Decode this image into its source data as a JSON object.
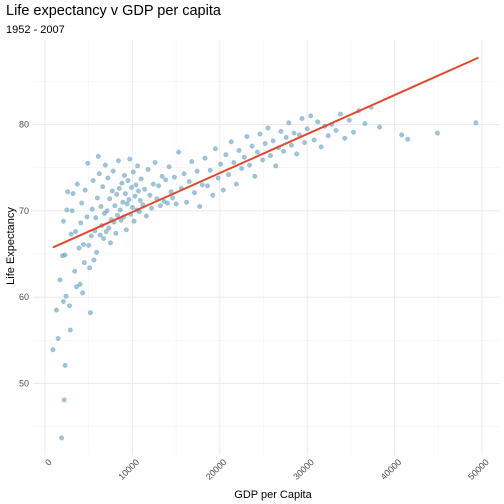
{
  "chart_data": {
    "type": "scatter",
    "title": "Life expectancy v GDP per capita",
    "subtitle": "1952 - 2007",
    "xlabel": "GDP per Capita",
    "ylabel": "Life Expectancy",
    "xlim": [
      0,
      50000
    ],
    "ylim": [
      42,
      90
    ],
    "x_ticks": [
      0,
      10000,
      20000,
      30000,
      40000,
      50000
    ],
    "x_tick_labels": [
      "0",
      "10000",
      "20000",
      "30000",
      "40000",
      "50000"
    ],
    "y_ticks": [
      50,
      60,
      70,
      80
    ],
    "y_tick_labels": [
      "50",
      "60",
      "70",
      "80"
    ],
    "grid": true,
    "point_color": "#5B9FC2",
    "line_color": "#E4472F",
    "trend_line": {
      "x": [
        1000,
        49500
      ],
      "y": [
        65.8,
        87.7
      ]
    },
    "points": [
      [
        900,
        53.9
      ],
      [
        1300,
        58.5
      ],
      [
        1500,
        55.2
      ],
      [
        1700,
        62.0
      ],
      [
        1900,
        43.7
      ],
      [
        2100,
        59.5
      ],
      [
        2200,
        48.1
      ],
      [
        2300,
        52.1
      ],
      [
        2400,
        60.1
      ],
      [
        2000,
        64.8
      ],
      [
        2100,
        68.8
      ],
      [
        2300,
        64.9
      ],
      [
        2500,
        70.1
      ],
      [
        2600,
        72.2
      ],
      [
        2800,
        59.0
      ],
      [
        2900,
        56.2
      ],
      [
        3000,
        67.3
      ],
      [
        3100,
        70.0
      ],
      [
        3200,
        72.0
      ],
      [
        3400,
        63.0
      ],
      [
        3500,
        67.6
      ],
      [
        3600,
        61.2
      ],
      [
        3700,
        73.1
      ],
      [
        3900,
        65.7
      ],
      [
        4000,
        61.5
      ],
      [
        4100,
        68.6
      ],
      [
        4200,
        70.9
      ],
      [
        4300,
        60.5
      ],
      [
        4400,
        66.1
      ],
      [
        4500,
        64.0
      ],
      [
        4600,
        72.4
      ],
      [
        4800,
        69.3
      ],
      [
        4900,
        75.5
      ],
      [
        5000,
        66.0
      ],
      [
        5100,
        63.4
      ],
      [
        5200,
        58.2
      ],
      [
        5300,
        67.1
      ],
      [
        5400,
        70.2
      ],
      [
        5500,
        73.5
      ],
      [
        5600,
        64.3
      ],
      [
        5700,
        67.7
      ],
      [
        5800,
        69.2
      ],
      [
        5900,
        65.2
      ],
      [
        6000,
        71.5
      ],
      [
        6100,
        76.3
      ],
      [
        6200,
        74.3
      ],
      [
        6300,
        67.2
      ],
      [
        6400,
        70.5
      ],
      [
        6500,
        68.3
      ],
      [
        6600,
        72.8
      ],
      [
        6700,
        66.8
      ],
      [
        6800,
        69.7
      ],
      [
        6900,
        75.3
      ],
      [
        7000,
        67.6
      ],
      [
        7100,
        70.0
      ],
      [
        7200,
        73.8
      ],
      [
        7300,
        68.0
      ],
      [
        7400,
        71.4
      ],
      [
        7500,
        66.3
      ],
      [
        7600,
        69.0
      ],
      [
        7700,
        72.3
      ],
      [
        7800,
        74.6
      ],
      [
        7900,
        68.7
      ],
      [
        8000,
        70.6
      ],
      [
        8100,
        67.4
      ],
      [
        8200,
        71.9
      ],
      [
        8300,
        69.5
      ],
      [
        8400,
        75.8
      ],
      [
        8500,
        72.6
      ],
      [
        8600,
        70.1
      ],
      [
        8700,
        68.9
      ],
      [
        8800,
        73.2
      ],
      [
        8900,
        71.0
      ],
      [
        9000,
        69.3
      ],
      [
        9100,
        74.1
      ],
      [
        9200,
        72.0
      ],
      [
        9300,
        67.8
      ],
      [
        9400,
        70.8
      ],
      [
        9500,
        73.5
      ],
      [
        9600,
        71.3
      ],
      [
        9700,
        76.0
      ],
      [
        9800,
        69.6
      ],
      [
        9900,
        72.7
      ],
      [
        10000,
        70.4
      ],
      [
        10100,
        74.5
      ],
      [
        10200,
        68.8
      ],
      [
        10300,
        71.7
      ],
      [
        10400,
        73.0
      ],
      [
        10500,
        70.1
      ],
      [
        10600,
        75.2
      ],
      [
        10700,
        72.3
      ],
      [
        10800,
        69.9
      ],
      [
        10900,
        71.2
      ],
      [
        11000,
        73.7
      ],
      [
        11200,
        70.7
      ],
      [
        11400,
        72.5
      ],
      [
        11600,
        69.4
      ],
      [
        11800,
        74.8
      ],
      [
        12000,
        71.8
      ],
      [
        12200,
        70.3
      ],
      [
        12400,
        73.1
      ],
      [
        12600,
        75.6
      ],
      [
        12800,
        71.4
      ],
      [
        13000,
        72.9
      ],
      [
        13200,
        70.6
      ],
      [
        13400,
        74.0
      ],
      [
        13600,
        71.1
      ],
      [
        13800,
        73.6
      ],
      [
        14000,
        70.9
      ],
      [
        14200,
        75.1
      ],
      [
        14400,
        72.2
      ],
      [
        14600,
        71.5
      ],
      [
        14800,
        73.9
      ],
      [
        15000,
        70.8
      ],
      [
        15300,
        76.8
      ],
      [
        15600,
        72.6
      ],
      [
        15900,
        74.3
      ],
      [
        16200,
        71.0
      ],
      [
        16500,
        73.4
      ],
      [
        16800,
        75.7
      ],
      [
        17100,
        72.1
      ],
      [
        17400,
        74.6
      ],
      [
        17700,
        70.5
      ],
      [
        18000,
        73.0
      ],
      [
        18300,
        76.1
      ],
      [
        18600,
        72.9
      ],
      [
        18900,
        74.7
      ],
      [
        19200,
        71.8
      ],
      [
        19500,
        77.2
      ],
      [
        19800,
        73.8
      ],
      [
        20100,
        75.4
      ],
      [
        20400,
        72.4
      ],
      [
        20700,
        76.5
      ],
      [
        21000,
        74.2
      ],
      [
        21300,
        78.0
      ],
      [
        21600,
        75.6
      ],
      [
        21900,
        73.1
      ],
      [
        22200,
        77.0
      ],
      [
        22500,
        74.9
      ],
      [
        22800,
        76.2
      ],
      [
        23100,
        78.6
      ],
      [
        23400,
        75.3
      ],
      [
        23700,
        77.5
      ],
      [
        24000,
        74.0
      ],
      [
        24300,
        76.8
      ],
      [
        24600,
        78.9
      ],
      [
        24900,
        75.9
      ],
      [
        25200,
        77.8
      ],
      [
        25500,
        79.6
      ],
      [
        25800,
        76.4
      ],
      [
        26100,
        78.1
      ],
      [
        26400,
        75.2
      ],
      [
        26700,
        77.3
      ],
      [
        27000,
        79.2
      ],
      [
        27300,
        76.9
      ],
      [
        27600,
        78.5
      ],
      [
        27900,
        80.2
      ],
      [
        28200,
        77.6
      ],
      [
        28500,
        79.0
      ],
      [
        28800,
        76.6
      ],
      [
        29100,
        78.8
      ],
      [
        29400,
        80.7
      ],
      [
        29700,
        77.9
      ],
      [
        30000,
        79.5
      ],
      [
        30400,
        81.0
      ],
      [
        30800,
        78.2
      ],
      [
        31200,
        80.3
      ],
      [
        31600,
        77.4
      ],
      [
        32000,
        79.8
      ],
      [
        32400,
        78.7
      ],
      [
        32800,
        80.0
      ],
      [
        33300,
        79.3
      ],
      [
        33800,
        81.2
      ],
      [
        34300,
        78.4
      ],
      [
        34800,
        80.5
      ],
      [
        35300,
        79.1
      ],
      [
        35900,
        81.6
      ],
      [
        36600,
        80.1
      ],
      [
        37300,
        82.0
      ],
      [
        38300,
        79.7
      ],
      [
        40800,
        78.8
      ],
      [
        41500,
        78.3
      ],
      [
        44900,
        79.0
      ],
      [
        49300,
        80.2
      ]
    ]
  }
}
